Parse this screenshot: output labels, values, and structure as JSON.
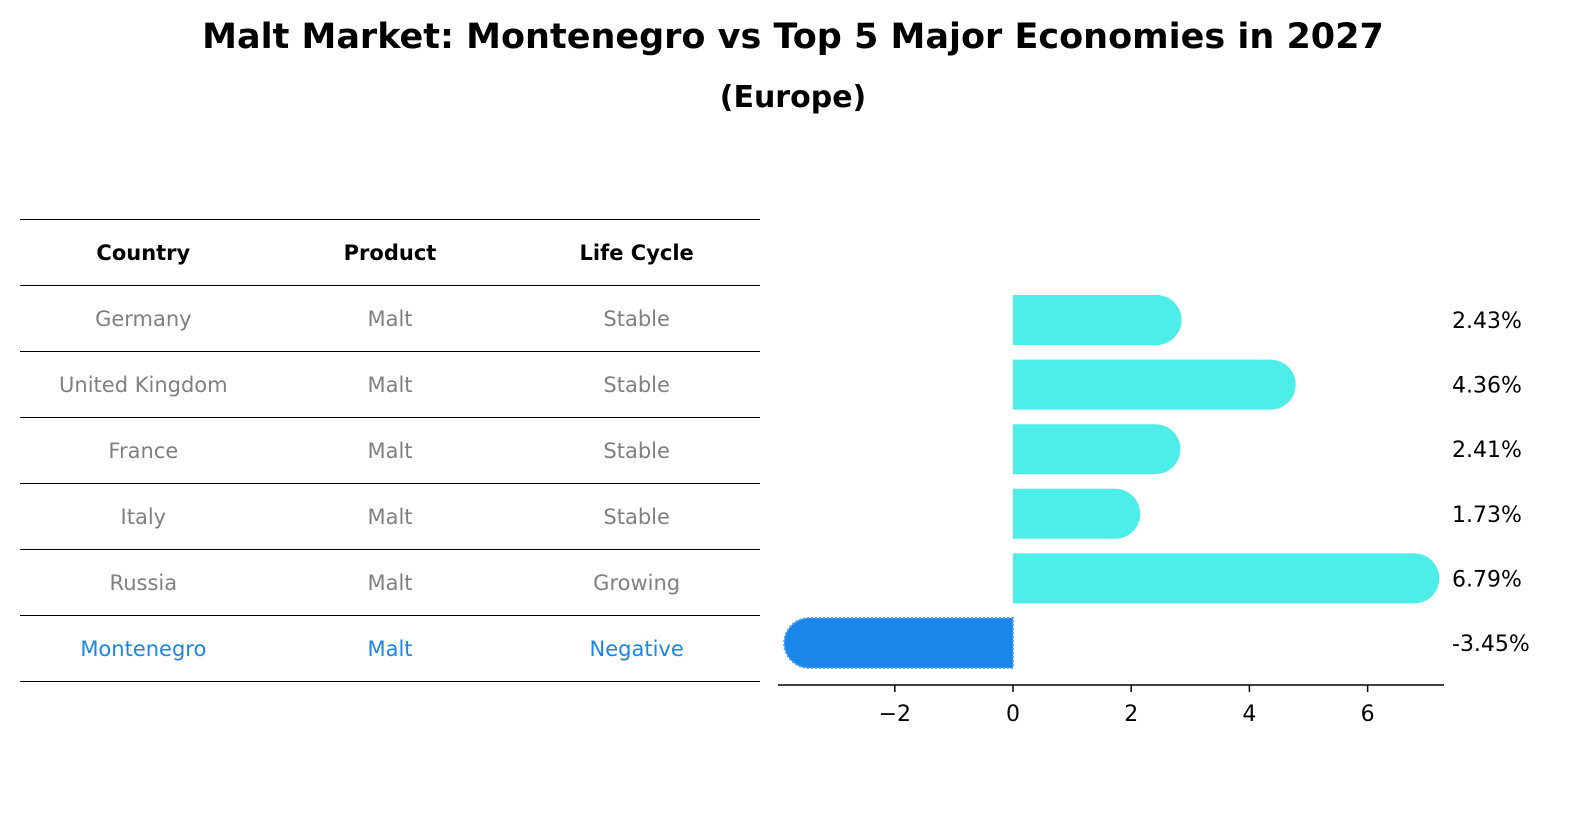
{
  "title": "Malt Market: Montenegro vs Top 5 Major Economies in 2027",
  "subtitle": "(Europe)",
  "table": {
    "headers": [
      "Country",
      "Product",
      "Life Cycle"
    ],
    "rows": [
      [
        "Germany",
        "Malt",
        "Stable"
      ],
      [
        "United Kingdom",
        "Malt",
        "Stable"
      ],
      [
        "France",
        "Malt",
        "Stable"
      ],
      [
        "Italy",
        "Malt",
        "Stable"
      ],
      [
        "Russia",
        "Malt",
        "Growing"
      ],
      [
        "Montenegro",
        "Malt",
        "Negative"
      ]
    ],
    "highlight_row": 5
  },
  "colors": {
    "positive_bar": "#4deeea",
    "negative_bar": "#1a86e8",
    "highlight_text": "#1a86e8",
    "muted_text": "#808080"
  },
  "chart_data": {
    "type": "bar",
    "orientation": "horizontal",
    "categories": [
      "Germany",
      "United Kingdom",
      "France",
      "Italy",
      "Russia",
      "Montenegro"
    ],
    "values": [
      2.43,
      4.36,
      2.41,
      1.73,
      6.79,
      -3.45
    ],
    "value_labels": [
      "2.43%",
      "4.36%",
      "2.41%",
      "1.73%",
      "6.79%",
      "-3.45%"
    ],
    "xticks": [
      -2,
      0,
      2,
      4,
      6
    ],
    "xtick_labels": [
      "−2",
      "0",
      "2",
      "4",
      "6"
    ],
    "xlim": [
      -3.95,
      7.3
    ],
    "grid": false,
    "legend": "none"
  }
}
